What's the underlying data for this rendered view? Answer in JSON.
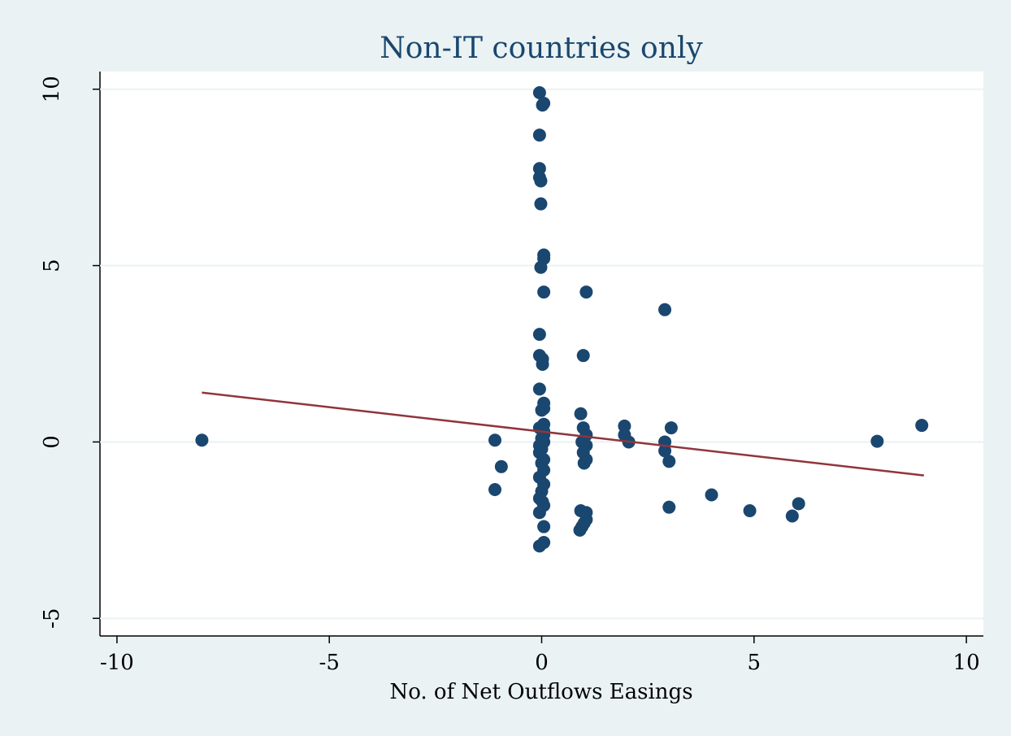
{
  "chart_data": {
    "type": "scatter",
    "title": "Non-IT countries only",
    "x_label": "No. of Net Outflows Easings",
    "xlim": [
      -10.4,
      10.4
    ],
    "ylim": [
      -5.5,
      10.5
    ],
    "xticks": [
      -10,
      -5,
      0,
      5,
      10
    ],
    "yticks": [
      -5,
      0,
      5,
      10
    ],
    "grid": true,
    "series": [
      {
        "kind": "scatter",
        "color": "#1a476f",
        "x": [
          -8,
          -1.1,
          -1.1,
          -0.95,
          -0.05,
          0.05,
          0.02,
          -0.05,
          -0.05,
          -0.05,
          -0.02,
          -0.02,
          0.05,
          0.05,
          -0.02,
          0.05,
          -0.05,
          -0.05,
          0.02,
          0.02,
          -0.05,
          0.05,
          0.05,
          0,
          0.05,
          -0.05,
          0.05,
          0.05,
          0,
          0.05,
          -0.05,
          0,
          -0.05,
          0.05,
          0,
          0.05,
          -0.05,
          0.05,
          0,
          -0.05,
          0.05,
          -0.05,
          0.05,
          0.05,
          -0.05,
          0.02,
          1.05,
          0.98,
          0.92,
          0.98,
          1.05,
          0.95,
          1.05,
          0.98,
          1.05,
          1.0,
          0.92,
          1.05,
          1.05,
          1.0,
          0.95,
          0.9,
          1.95,
          1.95,
          2.05,
          2.9,
          3.05,
          2.9,
          2.9,
          3.0,
          3.0,
          4.0,
          4.9,
          5.9,
          6.05,
          7.9,
          8.95
        ],
        "values": [
          0.05,
          0.05,
          -1.35,
          -0.7,
          9.9,
          9.6,
          9.55,
          8.7,
          7.75,
          7.5,
          7.4,
          6.75,
          5.3,
          5.2,
          4.95,
          4.25,
          3.05,
          2.45,
          2.35,
          2.2,
          1.5,
          1.1,
          0.95,
          0.9,
          0.5,
          0.4,
          0.3,
          0.2,
          0.1,
          0,
          -0.1,
          -0.2,
          -0.3,
          -0.5,
          -0.6,
          -0.8,
          -1.0,
          -1.2,
          -1.4,
          -1.6,
          -1.8,
          -2.0,
          -2.4,
          -2.85,
          -2.95,
          -1.7,
          4.25,
          2.45,
          0.8,
          0.4,
          0.2,
          0,
          -0.1,
          -0.3,
          -0.5,
          -0.6,
          -1.95,
          -2.0,
          -2.2,
          -2.3,
          -2.4,
          -2.5,
          0.45,
          0.2,
          0,
          3.75,
          0.4,
          0,
          -0.25,
          -0.55,
          -1.85,
          -1.5,
          -1.95,
          -2.1,
          -1.75,
          0.02,
          0.47
        ]
      },
      {
        "kind": "line",
        "color": "#90353b",
        "x": [
          -8,
          9
        ],
        "values": [
          1.4,
          -0.95
        ]
      }
    ]
  }
}
